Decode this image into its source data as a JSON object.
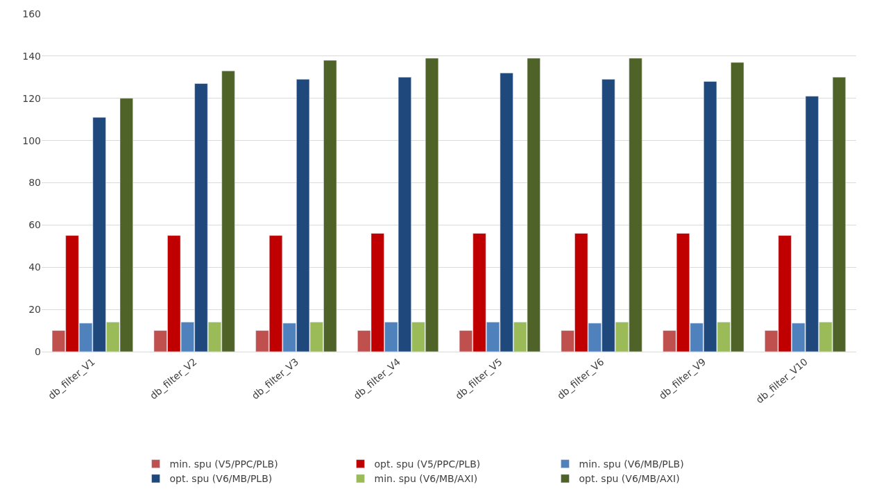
{
  "chart_data": {
    "type": "bar",
    "categories": [
      "db_filter_V1",
      "db_filter_V2",
      "db_filter_V3",
      "db_filter_V4",
      "db_filter_V5",
      "db_filter_V6",
      "db_filter_V9",
      "db_filter_V10"
    ],
    "series": [
      {
        "name": "min. spu (V5/PPC/PLB)",
        "color": "#c0504d",
        "values": [
          10,
          10,
          10,
          10,
          10,
          10,
          10,
          10
        ]
      },
      {
        "name": "opt. spu (V5/PPC/PLB)",
        "color": "#c00000",
        "values": [
          55,
          55,
          55,
          56,
          56,
          56,
          56,
          55
        ]
      },
      {
        "name": "min. spu (V6/MB/PLB)",
        "color": "#4f81bd",
        "values": [
          13.5,
          14,
          13.5,
          14,
          14,
          13.5,
          13.5,
          13.5
        ]
      },
      {
        "name": "opt. spu (V6/MB/PLB)",
        "color": "#1f497d",
        "values": [
          111,
          127,
          129,
          130,
          132,
          129,
          128,
          121
        ]
      },
      {
        "name": "min. spu (V6/MB/AXI)",
        "color": "#9bbb59",
        "values": [
          14,
          14,
          14,
          14,
          14,
          14,
          14,
          14
        ]
      },
      {
        "name": "opt. spu (V6/MB/AXI)",
        "color": "#4f6228",
        "values": [
          120,
          133,
          138,
          139,
          139,
          139,
          137,
          130
        ]
      }
    ],
    "ylim": [
      0,
      160
    ],
    "yticks": [
      0,
      20,
      40,
      60,
      80,
      100,
      120,
      140,
      160
    ],
    "grid": "y",
    "legend": "bottom"
  }
}
